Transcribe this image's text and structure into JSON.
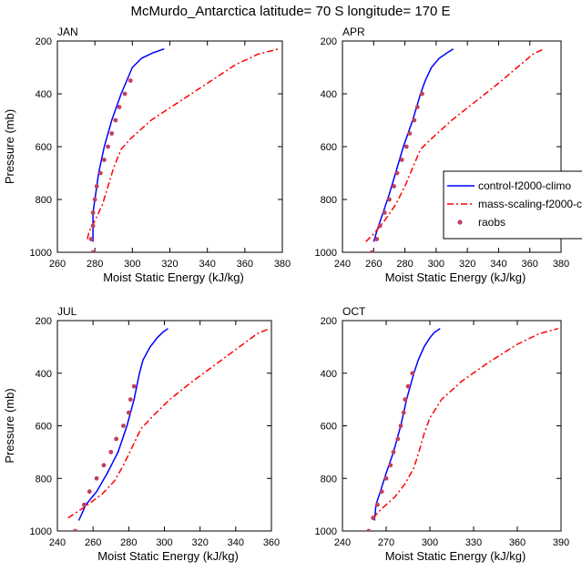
{
  "figure_title": "McMurdo_Antarctica  latitude= 70 S longitude= 170 E",
  "legend": {
    "entries": [
      {
        "label": "control-f2000-climo",
        "color": "#0000ff",
        "style": "solid"
      },
      {
        "label": "mass-scaling-f2000-climo",
        "color": "#ff0000",
        "style": "dashed"
      },
      {
        "label": "raobs",
        "color": "#c04060",
        "style": "dots"
      }
    ]
  },
  "chart_data": [
    {
      "type": "line",
      "title": "JAN",
      "xlabel": "Moist Static Energy (kJ/kg)",
      "ylabel": "Pressure (mb)",
      "xlim": [
        260,
        380
      ],
      "ylim": [
        1000,
        200
      ],
      "xticks": [
        260,
        280,
        300,
        320,
        340,
        360,
        380
      ],
      "yticks": [
        200,
        400,
        600,
        800,
        1000
      ],
      "series": [
        {
          "name": "control-f2000-climo",
          "color": "#0000ff",
          "style": "solid",
          "points": [
            [
              279,
              960
            ],
            [
              279,
              900
            ],
            [
              279,
              850
            ],
            [
              280,
              800
            ],
            [
              282,
              700
            ],
            [
              285,
              600
            ],
            [
              289,
              500
            ],
            [
              294,
              400
            ],
            [
              297,
              350
            ],
            [
              300,
              300
            ],
            [
              305,
              265
            ],
            [
              311,
              245
            ],
            [
              317,
              230
            ]
          ]
        },
        {
          "name": "mass-scaling-f2000-climo",
          "color": "#ff0000",
          "style": "dashed",
          "points": [
            [
              276,
              950
            ],
            [
              277,
              920
            ],
            [
              280,
              880
            ],
            [
              284,
              820
            ],
            [
              287,
              750
            ],
            [
              290,
              680
            ],
            [
              294,
              610
            ],
            [
              299,
              570
            ],
            [
              310,
              500
            ],
            [
              325,
              430
            ],
            [
              340,
              360
            ],
            [
              355,
              290
            ],
            [
              367,
              250
            ],
            [
              378,
              230
            ]
          ]
        },
        {
          "name": "raobs",
          "color": "#c04060",
          "style": "dots",
          "points": [
            [
              279,
              1000
            ],
            [
              278,
              950
            ],
            [
              279,
              900
            ],
            [
              279,
              850
            ],
            [
              280,
              800
            ],
            [
              281,
              750
            ],
            [
              283,
              700
            ],
            [
              285,
              650
            ],
            [
              287,
              600
            ],
            [
              289,
              550
            ],
            [
              291,
              500
            ],
            [
              293,
              450
            ],
            [
              296,
              400
            ],
            [
              299,
              350
            ]
          ]
        }
      ]
    },
    {
      "type": "line",
      "title": "APR",
      "xlabel": "Moist Static Energy (kJ/kg)",
      "ylabel": "Pressure (mb)",
      "xlim": [
        240,
        380
      ],
      "ylim": [
        1000,
        200
      ],
      "xticks": [
        240,
        260,
        280,
        300,
        320,
        340,
        360,
        380
      ],
      "yticks": [
        200,
        400,
        600,
        800,
        1000
      ],
      "series": [
        {
          "name": "control-f2000-climo",
          "color": "#0000ff",
          "style": "solid",
          "points": [
            [
              260,
              960
            ],
            [
              262,
              920
            ],
            [
              266,
              850
            ],
            [
              270,
              780
            ],
            [
              274,
              700
            ],
            [
              279,
              600
            ],
            [
              285,
              500
            ],
            [
              290,
              400
            ],
            [
              293,
              350
            ],
            [
              297,
              300
            ],
            [
              302,
              265
            ],
            [
              307,
              245
            ],
            [
              311,
              230
            ]
          ]
        },
        {
          "name": "mass-scaling-f2000-climo",
          "color": "#ff0000",
          "style": "dashed",
          "points": [
            [
              255,
              960
            ],
            [
              260,
              930
            ],
            [
              267,
              880
            ],
            [
              274,
              820
            ],
            [
              280,
              750
            ],
            [
              285,
              680
            ],
            [
              290,
              610
            ],
            [
              297,
              570
            ],
            [
              310,
              500
            ],
            [
              325,
              430
            ],
            [
              340,
              360
            ],
            [
              354,
              290
            ],
            [
              362,
              250
            ],
            [
              369,
              230
            ]
          ]
        },
        {
          "name": "raobs",
          "color": "#c04060",
          "style": "dots",
          "points": [
            [
              259,
              1000
            ],
            [
              262,
              950
            ],
            [
              264,
              900
            ],
            [
              267,
              850
            ],
            [
              270,
              800
            ],
            [
              273,
              750
            ],
            [
              275,
              700
            ],
            [
              278,
              650
            ],
            [
              281,
              600
            ],
            [
              283,
              550
            ],
            [
              286,
              500
            ],
            [
              288,
              450
            ],
            [
              291,
              400
            ]
          ]
        }
      ]
    },
    {
      "type": "line",
      "title": "JUL",
      "xlabel": "Moist Static Energy (kJ/kg)",
      "ylabel": "Pressure (mb)",
      "xlim": [
        240,
        360
      ],
      "ylim": [
        1000,
        200
      ],
      "xticks": [
        240,
        260,
        280,
        300,
        320,
        340,
        360
      ],
      "yticks": [
        200,
        400,
        600,
        800,
        1000
      ],
      "series": [
        {
          "name": "control-f2000-climo",
          "color": "#0000ff",
          "style": "solid",
          "points": [
            [
              252,
              960
            ],
            [
              256,
              900
            ],
            [
              262,
              850
            ],
            [
              268,
              780
            ],
            [
              274,
              700
            ],
            [
              279,
              600
            ],
            [
              283,
              500
            ],
            [
              286,
              400
            ],
            [
              288,
              350
            ],
            [
              292,
              300
            ],
            [
              296,
              265
            ],
            [
              299,
              245
            ],
            [
              302,
              230
            ]
          ]
        },
        {
          "name": "mass-scaling-f2000-climo",
          "color": "#ff0000",
          "style": "dashed",
          "points": [
            [
              246,
              950
            ],
            [
              255,
              910
            ],
            [
              265,
              860
            ],
            [
              272,
              810
            ],
            [
              277,
              750
            ],
            [
              282,
              680
            ],
            [
              287,
              610
            ],
            [
              294,
              560
            ],
            [
              303,
              500
            ],
            [
              316,
              430
            ],
            [
              330,
              360
            ],
            [
              344,
              290
            ],
            [
              352,
              250
            ],
            [
              359,
              230
            ]
          ]
        },
        {
          "name": "raobs",
          "color": "#c04060",
          "style": "dots",
          "points": [
            [
              250,
              1000
            ],
            [
              255,
              900
            ],
            [
              258,
              850
            ],
            [
              262,
              800
            ],
            [
              266,
              750
            ],
            [
              270,
              700
            ],
            [
              273,
              650
            ],
            [
              277,
              600
            ],
            [
              280,
              550
            ],
            [
              281,
              500
            ],
            [
              283,
              450
            ]
          ]
        }
      ]
    },
    {
      "type": "line",
      "title": "OCT",
      "xlabel": "Moist Static Energy (kJ/kg)",
      "ylabel": "Pressure (mb)",
      "xlim": [
        240,
        390
      ],
      "ylim": [
        1000,
        200
      ],
      "xticks": [
        240,
        270,
        300,
        330,
        360,
        390
      ],
      "yticks": [
        200,
        400,
        600,
        800,
        1000
      ],
      "series": [
        {
          "name": "control-f2000-climo",
          "color": "#0000ff",
          "style": "solid",
          "points": [
            [
              262,
              960
            ],
            [
              263,
              900
            ],
            [
              266,
              850
            ],
            [
              270,
              780
            ],
            [
              275,
              700
            ],
            [
              280,
              600
            ],
            [
              284,
              500
            ],
            [
              289,
              400
            ],
            [
              292,
              350
            ],
            [
              296,
              300
            ],
            [
              300,
              265
            ],
            [
              303,
              245
            ],
            [
              307,
              230
            ]
          ]
        },
        {
          "name": "mass-scaling-f2000-climo",
          "color": "#ff0000",
          "style": "dashed",
          "points": [
            [
              261,
              950
            ],
            [
              266,
              920
            ],
            [
              276,
              870
            ],
            [
              283,
              820
            ],
            [
              289,
              760
            ],
            [
              293,
              690
            ],
            [
              296,
              630
            ],
            [
              300,
              570
            ],
            [
              308,
              500
            ],
            [
              322,
              430
            ],
            [
              340,
              360
            ],
            [
              360,
              290
            ],
            [
              375,
              250
            ],
            [
              388,
              230
            ]
          ]
        },
        {
          "name": "raobs",
          "color": "#c04060",
          "style": "dots",
          "points": [
            [
              258,
              1000
            ],
            [
              261,
              950
            ],
            [
              264,
              900
            ],
            [
              267,
              850
            ],
            [
              270,
              800
            ],
            [
              273,
              750
            ],
            [
              275,
              700
            ],
            [
              278,
              650
            ],
            [
              280,
              600
            ],
            [
              282,
              550
            ],
            [
              283,
              500
            ],
            [
              285,
              450
            ],
            [
              288,
              400
            ]
          ]
        }
      ]
    }
  ]
}
